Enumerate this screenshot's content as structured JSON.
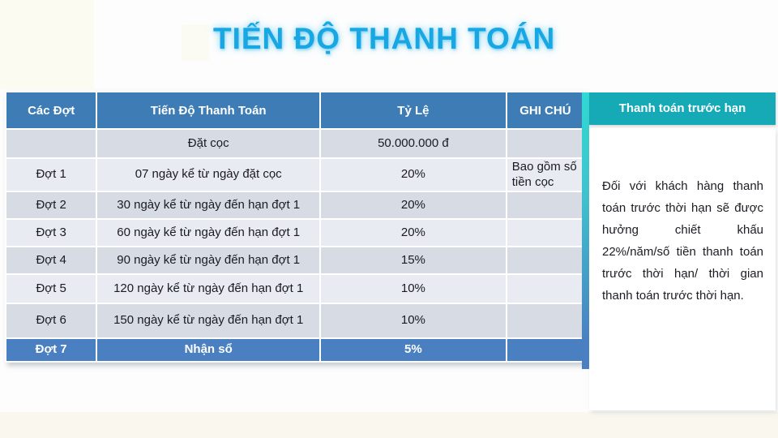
{
  "page": {
    "title": "TIẾN ĐỘ THANH TOÁN"
  },
  "table": {
    "headers": [
      "Các Đợt",
      "Tiến Độ Thanh Toán",
      "Tỷ Lệ",
      "GHI CHÚ"
    ],
    "rows": [
      {
        "stage": "",
        "schedule": "Đặt cọc",
        "rate": "50.000.000 đ",
        "note": ""
      },
      {
        "stage": "Đợt 1",
        "schedule": "07 ngày kể từ ngày đặt cọc",
        "rate": "20%",
        "note": "Bao gồm số tiền cọc"
      },
      {
        "stage": "Đợt 2",
        "schedule": "30 ngày kể từ ngày đến hạn đợt 1",
        "rate": "20%",
        "note": ""
      },
      {
        "stage": "Đợt 3",
        "schedule": "60 ngày kể từ ngày đến hạn đợt 1",
        "rate": "20%",
        "note": ""
      },
      {
        "stage": "Đợt 4",
        "schedule": "90 ngày kể từ ngày đến hạn đợt 1",
        "rate": "15%",
        "note": ""
      },
      {
        "stage": "Đợt 5",
        "schedule": "120 ngày kể từ ngày đến hạn đợt 1",
        "rate": "10%",
        "note": ""
      },
      {
        "stage": "Đợt 6",
        "schedule": "150 ngày kể từ ngày đến hạn đợt 1",
        "rate": "10%",
        "note": ""
      },
      {
        "stage": "Đợt 7",
        "schedule": "Nhận sổ",
        "rate": "5%",
        "note": "",
        "highlight": true
      }
    ]
  },
  "side_panel": {
    "header": "Thanh toán trước hạn",
    "body": "Đối với khách hàng thanh toán trước thời hạn sẽ được hưởng chiết khấu 22%/năm/số tiền thanh toán trước thời hạn/ thời gian thanh toán trước thời hạn."
  },
  "colors": {
    "title_blue": "#18a7e2",
    "header_blue": "#3e7cb5",
    "highlight_blue": "#4a80c1",
    "teal": "#16a9b6",
    "row_dark": "#d6dbe4",
    "row_light": "#e8ebf2"
  }
}
